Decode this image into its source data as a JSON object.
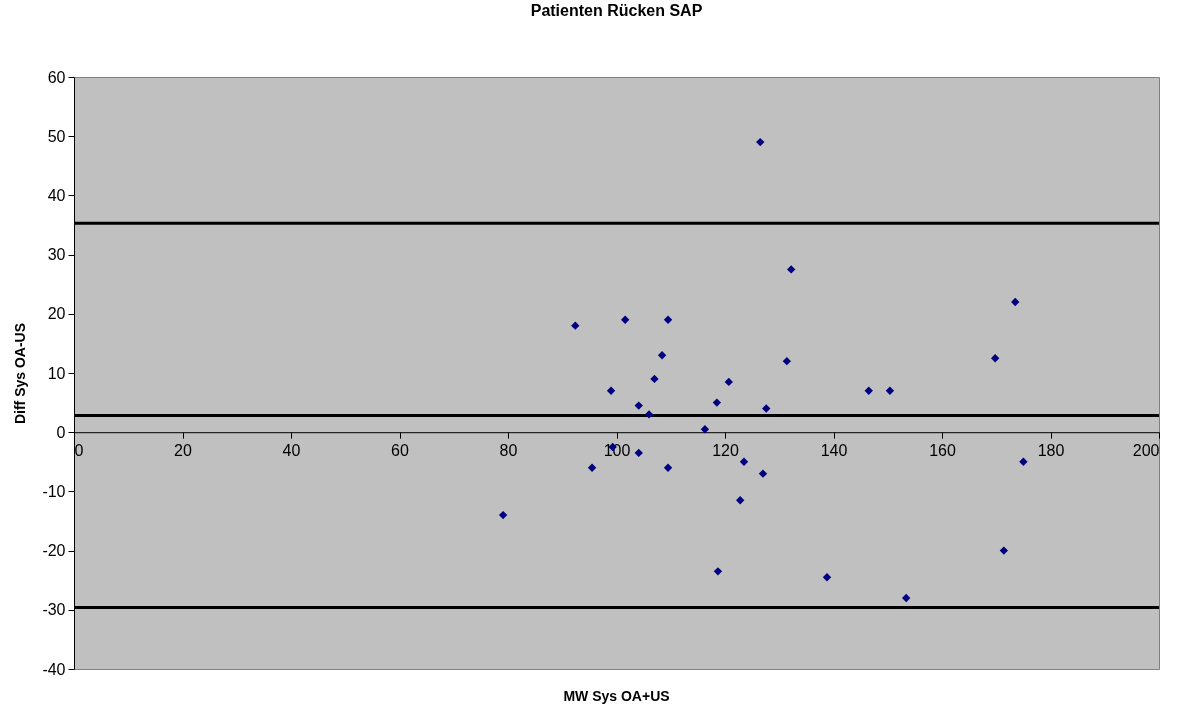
{
  "chart_data": {
    "type": "scatter",
    "title": "Patienten Rücken SAP",
    "xlabel": "MW Sys OA+US",
    "ylabel": "Diff Sys OA-US",
    "xlim": [
      0,
      200
    ],
    "xticks": [
      0,
      20,
      40,
      60,
      80,
      100,
      120,
      140,
      160,
      180,
      200
    ],
    "ylim": [
      -40,
      60
    ],
    "yticks": [
      -40,
      -30,
      -20,
      -10,
      0,
      10,
      20,
      30,
      40,
      50,
      60
    ],
    "grid": false,
    "marker": "diamond",
    "series": [
      {
        "color": "#000080",
        "x": [
          79.1,
          92.4,
          99,
          99.3,
          95.5,
          101.6,
          104.1,
          104.1,
          106,
          107,
          108.4,
          109.5,
          109.5,
          116.3,
          118.5,
          118.7,
          120.7,
          122.8,
          123.5,
          126.5,
          127,
          127.6,
          131.4,
          132.2,
          138.8,
          146.5,
          150.4,
          153.4,
          169.8,
          173.5,
          175,
          171.4
        ],
        "values": [
          -14,
          18,
          7,
          -2.5,
          -6,
          19,
          4.5,
          -3.5,
          3,
          9,
          13,
          19,
          -6,
          0.5,
          5,
          -23.5,
          8.5,
          -11.5,
          -5,
          49,
          -7,
          4,
          12,
          27.5,
          -24.5,
          7,
          7,
          -28,
          12.5,
          22,
          -5,
          -20
        ]
      }
    ],
    "ref_lines": [
      {
        "axis": "y",
        "value": 35.3,
        "color": "#000000"
      },
      {
        "axis": "y",
        "value": 2.8,
        "color": "#000000"
      },
      {
        "axis": "y",
        "value": -29.6,
        "color": "#000000"
      }
    ]
  }
}
